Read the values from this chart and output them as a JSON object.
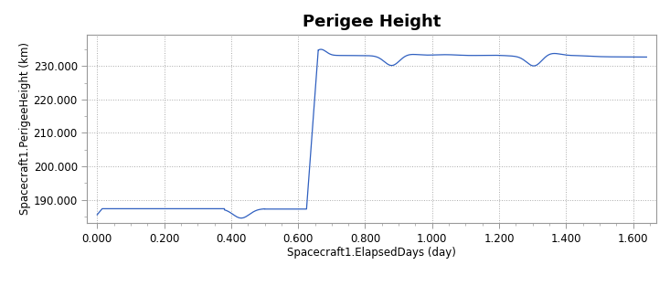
{
  "title": "Perigee Height",
  "xlabel": "Spacecraft1.ElapsedDays (day)",
  "ylabel": "Spacecraft1.PerigeeHeight (km)",
  "legend_label": "Spacecraft1.PerigeeHeight (km)",
  "line_color": "#3060c0",
  "bg_color": "#ffffff",
  "plot_bg_color": "#ffffff",
  "grid_color": "#aaaaaa",
  "spine_color": "#999999",
  "tick_color": "#555555",
  "label_color": "#000000",
  "title_color": "#000000",
  "legend_line_color": "#3060c0",
  "legend_text_color": "#000000",
  "xlim": [
    -0.03,
    1.67
  ],
  "ylim": [
    183.0,
    239.5
  ],
  "xticks": [
    0.0,
    0.2,
    0.4,
    0.6,
    0.8,
    1.0,
    1.2,
    1.4,
    1.6
  ],
  "yticks": [
    190.0,
    200.0,
    210.0,
    220.0,
    230.0
  ],
  "title_fontsize": 13,
  "label_fontsize": 8.5,
  "tick_fontsize": 8.5
}
